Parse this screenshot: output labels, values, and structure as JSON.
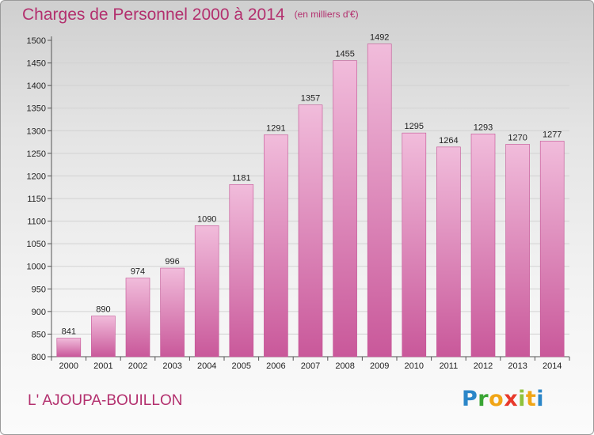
{
  "title": "Charges de Personnel 2000 à 2014",
  "subtitle": "(en milliers d'€)",
  "commune": "L' AJOUPA-BOUILLON",
  "logo": {
    "letters": [
      "P",
      "r",
      "o",
      "x",
      "i",
      "t",
      "i"
    ],
    "colors": [
      "#2b86c8",
      "#3aa534",
      "#f0a516",
      "#e8392b",
      "#8fc23c",
      "#f0a516",
      "#2b86c8"
    ]
  },
  "colors": {
    "accent": "#b3306e",
    "bar_light": "#f1bcdb",
    "bar_dark": "#c9589a"
  },
  "chart_data": {
    "type": "bar",
    "categories": [
      "2000",
      "2001",
      "2002",
      "2003",
      "2004",
      "2005",
      "2006",
      "2007",
      "2008",
      "2009",
      "2010",
      "2011",
      "2012",
      "2013",
      "2014"
    ],
    "values": [
      841,
      890,
      974,
      996,
      1090,
      1181,
      1291,
      1357,
      1455,
      1492,
      1295,
      1264,
      1293,
      1270,
      1277
    ],
    "ylim": [
      800,
      1500
    ],
    "yticks": [
      800,
      850,
      900,
      950,
      1000,
      1050,
      1100,
      1150,
      1200,
      1250,
      1300,
      1350,
      1400,
      1450,
      1500
    ],
    "grid": true,
    "title": "Charges de Personnel 2000 à 2014",
    "xlabel": "",
    "ylabel": ""
  }
}
